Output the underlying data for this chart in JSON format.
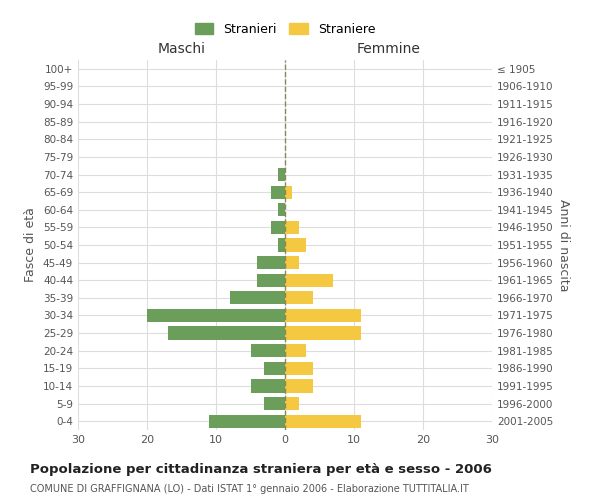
{
  "age_groups": [
    "100+",
    "95-99",
    "90-94",
    "85-89",
    "80-84",
    "75-79",
    "70-74",
    "65-69",
    "60-64",
    "55-59",
    "50-54",
    "45-49",
    "40-44",
    "35-39",
    "30-34",
    "25-29",
    "20-24",
    "15-19",
    "10-14",
    "5-9",
    "0-4"
  ],
  "birth_years": [
    "≤ 1905",
    "1906-1910",
    "1911-1915",
    "1916-1920",
    "1921-1925",
    "1926-1930",
    "1931-1935",
    "1936-1940",
    "1941-1945",
    "1946-1950",
    "1951-1955",
    "1956-1960",
    "1961-1965",
    "1966-1970",
    "1971-1975",
    "1976-1980",
    "1981-1985",
    "1986-1990",
    "1991-1995",
    "1996-2000",
    "2001-2005"
  ],
  "maschi": [
    0,
    0,
    0,
    0,
    0,
    0,
    1,
    2,
    1,
    2,
    1,
    4,
    4,
    8,
    20,
    17,
    5,
    3,
    5,
    3,
    11
  ],
  "femmine": [
    0,
    0,
    0,
    0,
    0,
    0,
    0,
    1,
    0,
    2,
    3,
    2,
    7,
    4,
    11,
    11,
    3,
    4,
    4,
    2,
    11
  ],
  "color_maschi": "#6a9e5a",
  "color_femmine": "#f5c842",
  "title": "Popolazione per cittadinanza straniera per età e sesso - 2006",
  "subtitle": "COMUNE DI GRAFFIGNANA (LO) - Dati ISTAT 1° gennaio 2006 - Elaborazione TUTTITALIA.IT",
  "xlabel_left": "Maschi",
  "xlabel_right": "Femmine",
  "ylabel_left": "Fasce di età",
  "ylabel_right": "Anni di nascita",
  "legend_maschi": "Stranieri",
  "legend_femmine": "Straniere",
  "xlim": 30,
  "bg_color": "#ffffff",
  "grid_color": "#dddddd"
}
